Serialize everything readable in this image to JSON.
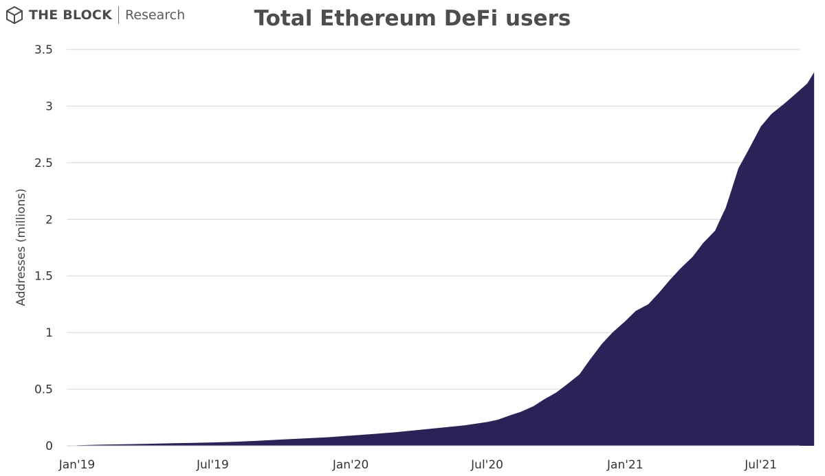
{
  "brand": {
    "name": "THE BLOCK",
    "sub": "Research"
  },
  "chart_data": {
    "type": "area",
    "title": "Total Ethereum DeFi users",
    "ylabel": "Addresses (millions)",
    "xlabel": "",
    "ylim": [
      0,
      3.5
    ],
    "yticks": [
      "0",
      "0.5",
      "1",
      "1.5",
      "2",
      "2.5",
      "3",
      "3.5"
    ],
    "xticks": [
      "Jan'19",
      "Jul'19",
      "Jan'20",
      "Jul'20",
      "Jan'21",
      "Jul'21"
    ],
    "grid": true,
    "color": "#2a2357",
    "series": [
      {
        "x": [
          "2019-01-01",
          "2019-02-01",
          "2019-03-01",
          "2019-04-01",
          "2019-05-01",
          "2019-06-01",
          "2019-07-01",
          "2019-08-01",
          "2019-09-01",
          "2019-10-01",
          "2019-11-01",
          "2019-12-01",
          "2020-01-01",
          "2020-02-01",
          "2020-03-01",
          "2020-04-01",
          "2020-05-01",
          "2020-06-01",
          "2020-07-01",
          "2020-07-15",
          "2020-08-01",
          "2020-08-15",
          "2020-09-01",
          "2020-09-15",
          "2020-10-01",
          "2020-10-15",
          "2020-11-01",
          "2020-11-15",
          "2020-12-01",
          "2020-12-15",
          "2021-01-01",
          "2021-01-15",
          "2021-02-01",
          "2021-02-15",
          "2021-03-01",
          "2021-03-15",
          "2021-04-01",
          "2021-04-15",
          "2021-05-01",
          "2021-05-10",
          "2021-05-15",
          "2021-05-20",
          "2021-06-01",
          "2021-06-15",
          "2021-07-01",
          "2021-07-15",
          "2021-08-01",
          "2021-08-15",
          "2021-09-01",
          "2021-09-10"
        ],
        "y": [
          0.005,
          0.01,
          0.013,
          0.017,
          0.021,
          0.025,
          0.03,
          0.036,
          0.045,
          0.055,
          0.065,
          0.075,
          0.09,
          0.105,
          0.12,
          0.14,
          0.16,
          0.18,
          0.21,
          0.23,
          0.27,
          0.3,
          0.35,
          0.41,
          0.47,
          0.54,
          0.63,
          0.76,
          0.9,
          1.0,
          1.1,
          1.19,
          1.25,
          1.35,
          1.46,
          1.56,
          1.67,
          1.79,
          1.9,
          2.03,
          2.1,
          2.2,
          2.45,
          2.62,
          2.82,
          2.93,
          3.02,
          3.1,
          3.2,
          3.3
        ]
      }
    ]
  }
}
